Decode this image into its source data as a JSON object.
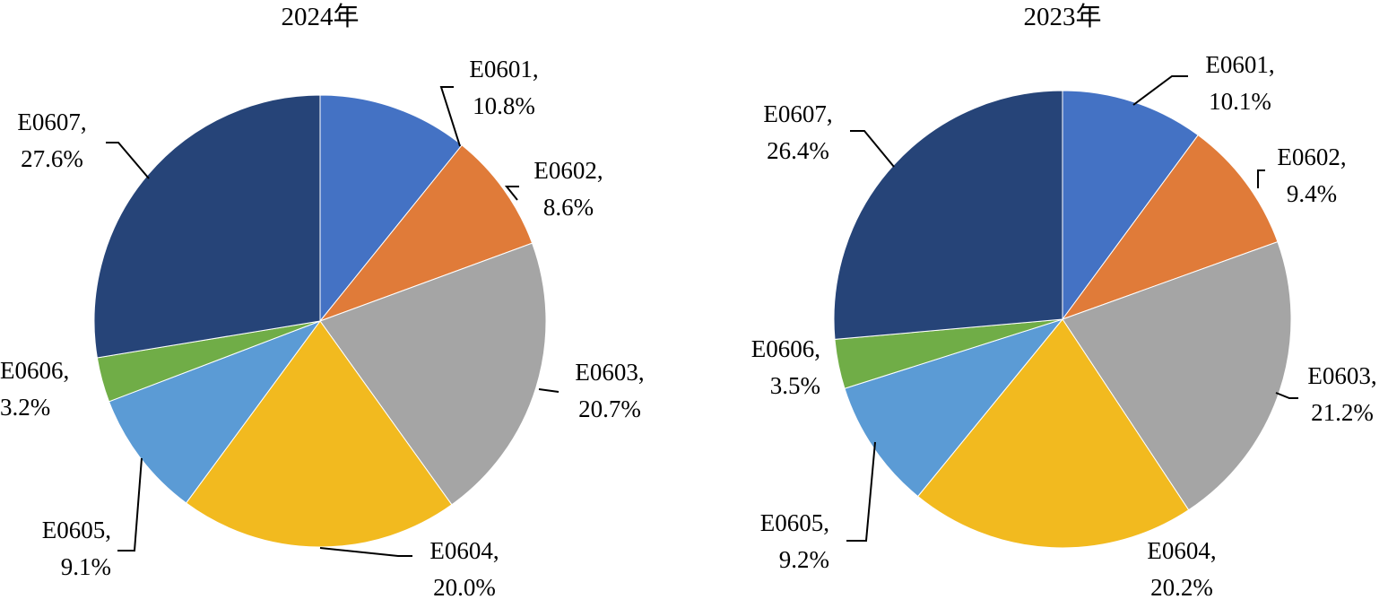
{
  "chart_data": [
    {
      "type": "pie",
      "title": "2024年",
      "slices": [
        {
          "category": "E0601",
          "value": 10.8,
          "label": "10.8%",
          "color": "#4472C4"
        },
        {
          "category": "E0602",
          "value": 8.6,
          "label": "8.6%",
          "color": "#E07B39"
        },
        {
          "category": "E0603",
          "value": 20.7,
          "label": "20.7%",
          "color": "#A5A5A5"
        },
        {
          "category": "E0604",
          "value": 20.0,
          "label": "20.0%",
          "color": "#F2BA1F"
        },
        {
          "category": "E0605",
          "value": 9.1,
          "label": "9.1%",
          "color": "#5B9BD5"
        },
        {
          "category": "E0606",
          "value": 3.2,
          "label": "3.2%",
          "color": "#70AD47"
        },
        {
          "category": "E0607",
          "value": 27.6,
          "label": "27.6%",
          "color": "#264478"
        }
      ],
      "start_angle": "12 o'clock",
      "direction": "clockwise",
      "legend": "none"
    },
    {
      "type": "pie",
      "title": "2023年",
      "slices": [
        {
          "category": "E0601",
          "value": 10.1,
          "label": "10.1%",
          "color": "#4472C4"
        },
        {
          "category": "E0602",
          "value": 9.4,
          "label": "9.4%",
          "color": "#E07B39"
        },
        {
          "category": "E0603",
          "value": 21.2,
          "label": "21.2%",
          "color": "#A5A5A5"
        },
        {
          "category": "E0604",
          "value": 20.2,
          "label": "20.2%",
          "color": "#F2BA1F"
        },
        {
          "category": "E0605",
          "value": 9.2,
          "label": "9.2%",
          "color": "#5B9BD5"
        },
        {
          "category": "E0606",
          "value": 3.5,
          "label": "3.5%",
          "color": "#70AD47"
        },
        {
          "category": "E0607",
          "value": 26.4,
          "label": "26.4%",
          "color": "#264478"
        }
      ],
      "start_angle": "12 o'clock",
      "direction": "clockwise",
      "legend": "none"
    }
  ]
}
